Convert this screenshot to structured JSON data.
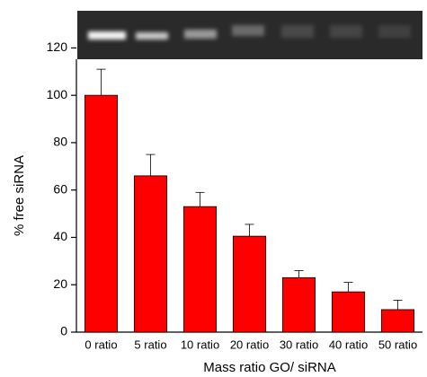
{
  "chart_data": {
    "type": "bar",
    "categories": [
      "0 ratio",
      "5 ratio",
      "10 ratio",
      "20 ratio",
      "30 ratio",
      "40 ratio",
      "50 ratio"
    ],
    "values": [
      100,
      66,
      53,
      40.5,
      23,
      17,
      9.5
    ],
    "errors": [
      11,
      9,
      6,
      5,
      3,
      4,
      4
    ],
    "color": "#ff0000",
    "xlabel": "Mass ratio GO/ siRNA",
    "ylabel": "% free siRNA",
    "ylim": [
      0,
      130
    ],
    "yticks": [
      0,
      20,
      40,
      60,
      80,
      100,
      120
    ]
  }
}
